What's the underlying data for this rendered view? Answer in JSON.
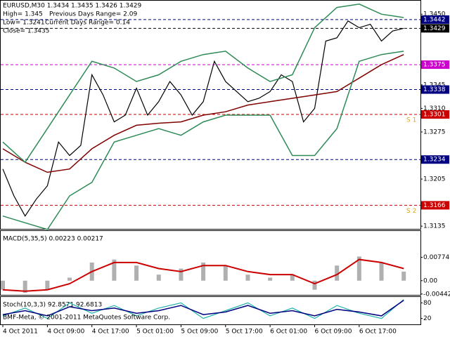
{
  "header": {
    "symbol_line": "EURUSD,M30  1.3434 1.3435 1.3426 1.3429",
    "high": "High= 1.345",
    "prev_range": "Previous Days Range= 2.09",
    "low": "Low= 1.3241",
    "cur_range": "Current Days Range= 0.14",
    "close": "Close= 1.3435"
  },
  "footer": "BMF-Meta, © 2001-2011 MetaQuotes Software Corp.",
  "chart_data": [
    {
      "type": "line",
      "xlim": [
        0,
        74.5
      ],
      "xticks": [
        {
          "value": 0,
          "label": "4 Oct 2011"
        },
        {
          "value": 8,
          "label": "4 Oct 09:00"
        },
        {
          "value": 16,
          "label": "4 Oct 17:00"
        },
        {
          "value": 24,
          "label": "5 Oct 01:00"
        },
        {
          "value": 32,
          "label": "5 Oct 09:00"
        },
        {
          "value": 40,
          "label": "5 Oct 17:00"
        },
        {
          "value": 48,
          "label": "6 Oct 01:00"
        },
        {
          "value": 56,
          "label": "6 Oct 09:00"
        },
        {
          "value": 64,
          "label": "6 Oct 17:00"
        }
      ],
      "ylim": [
        1.3132,
        1.3469
      ],
      "yticks": [
        {
          "value": 1.345,
          "label": "1.3450"
        },
        1.3345,
        {
          "value": 1.331,
          "label": "1.3310"
        },
        1.3275,
        1.3205,
        1.3135
      ],
      "series": [
        {
          "color": "#000000",
          "x": [
            0,
            2,
            4,
            6,
            8,
            10,
            12,
            14,
            16,
            18,
            20,
            22,
            24,
            26,
            28,
            30,
            32,
            34,
            36,
            38,
            40,
            42,
            44,
            46,
            48,
            50,
            52,
            54,
            56,
            58,
            60,
            62,
            64,
            66,
            68,
            70,
            72
          ],
          "values": [
            1.322,
            1.318,
            1.315,
            1.3175,
            1.3195,
            1.326,
            1.324,
            1.3255,
            1.336,
            1.333,
            1.329,
            1.33,
            1.334,
            1.33,
            1.332,
            1.335,
            1.333,
            1.33,
            1.332,
            1.338,
            1.335,
            1.3335,
            1.332,
            1.3325,
            1.3335,
            1.336,
            1.335,
            1.329,
            1.331,
            1.341,
            1.3415,
            1.344,
            1.343,
            1.3435,
            1.341,
            1.3425,
            1.3429
          ]
        },
        {
          "color": "#800000",
          "x": [
            0,
            4,
            8,
            12,
            16,
            20,
            24,
            28,
            32,
            36,
            40,
            44,
            48,
            52,
            56,
            60,
            64,
            68,
            72
          ],
          "values": [
            1.325,
            1.323,
            1.3215,
            1.322,
            1.325,
            1.327,
            1.3285,
            1.3288,
            1.329,
            1.33,
            1.3305,
            1.3315,
            1.332,
            1.3325,
            1.333,
            1.3335,
            1.3355,
            1.3375,
            1.339
          ]
        },
        {
          "color": "#2e8b57",
          "x": [
            0,
            4,
            8,
            12,
            16,
            20,
            24,
            28,
            32,
            36,
            40,
            44,
            48,
            52,
            56,
            60,
            64,
            68,
            72
          ],
          "values": [
            1.326,
            1.323,
            1.328,
            1.333,
            1.338,
            1.337,
            1.335,
            1.336,
            1.338,
            1.339,
            1.3395,
            1.337,
            1.335,
            1.336,
            1.343,
            1.346,
            1.3465,
            1.345,
            1.3445
          ]
        },
        {
          "color": "#2e8b57",
          "x": [
            0,
            4,
            8,
            12,
            16,
            20,
            24,
            28,
            32,
            36,
            40,
            44,
            48,
            52,
            56,
            60,
            64,
            68,
            72
          ],
          "values": [
            1.315,
            1.314,
            1.313,
            1.318,
            1.32,
            1.326,
            1.327,
            1.328,
            1.327,
            1.329,
            1.33,
            1.33,
            1.33,
            1.324,
            1.324,
            1.328,
            1.338,
            1.339,
            1.3395
          ]
        }
      ],
      "levels": [
        {
          "value": 1.3442,
          "color": "#000080"
        },
        {
          "value": 1.3429,
          "color": "#000000"
        },
        {
          "value": 1.3375,
          "color": "#cc00cc"
        },
        {
          "value": 1.3338,
          "color": "#000080"
        },
        {
          "value": 1.3301,
          "color": "#cc0000",
          "tag": "S 1"
        },
        {
          "value": 1.3234,
          "color": "#000080"
        },
        {
          "value": 1.3166,
          "color": "#cc0000",
          "tag": "S 2"
        }
      ]
    },
    {
      "type": "macd",
      "title": "MACD(5,35,5) 0.00223 0.00217",
      "xlim": [
        0,
        74.5
      ],
      "ylim": [
        -0.0047,
        0.0162
      ],
      "yticks": [
        0.00774,
        {
          "value": 0,
          "label": "0.00"
        },
        -0.00442
      ],
      "x": [
        0,
        4,
        8,
        12,
        16,
        20,
        24,
        28,
        32,
        36,
        40,
        44,
        48,
        52,
        56,
        60,
        64,
        68,
        72
      ],
      "histogram": {
        "color": "#b0b0b0",
        "values": [
          -0.003,
          -0.004,
          -0.003,
          0.001,
          0.006,
          0.007,
          0.005,
          0.002,
          0.004,
          0.006,
          0.005,
          0.002,
          0.001,
          0.002,
          -0.003,
          0.005,
          0.008,
          0.006,
          0.003
        ]
      },
      "signal": {
        "color": "#cc0000",
        "values": [
          -0.003,
          -0.0035,
          -0.003,
          -0.001,
          0.003,
          0.006,
          0.006,
          0.004,
          0.003,
          0.005,
          0.005,
          0.003,
          0.002,
          0.002,
          -0.001,
          0.002,
          0.007,
          0.006,
          0.004
        ]
      }
    },
    {
      "type": "line",
      "title": "Stoch(10,3,3) 92.8571 92.6813",
      "xlim": [
        0,
        74.5
      ],
      "ylim": [
        0,
        100
      ],
      "yticks": [
        80,
        20
      ],
      "series": [
        {
          "color": "#20b2aa",
          "x": [
            0,
            4,
            8,
            12,
            16,
            20,
            24,
            28,
            32,
            36,
            40,
            44,
            48,
            52,
            56,
            60,
            64,
            68,
            72
          ],
          "values": [
            30,
            60,
            20,
            80,
            40,
            70,
            30,
            60,
            80,
            20,
            50,
            80,
            30,
            60,
            20,
            70,
            40,
            20,
            93
          ]
        },
        {
          "color": "#000080",
          "x": [
            0,
            4,
            8,
            12,
            16,
            20,
            24,
            28,
            32,
            36,
            40,
            44,
            48,
            52,
            56,
            60,
            64,
            68,
            72
          ],
          "values": [
            35,
            50,
            30,
            65,
            50,
            60,
            40,
            50,
            70,
            35,
            45,
            70,
            40,
            50,
            30,
            55,
            45,
            30,
            90
          ]
        }
      ]
    }
  ]
}
